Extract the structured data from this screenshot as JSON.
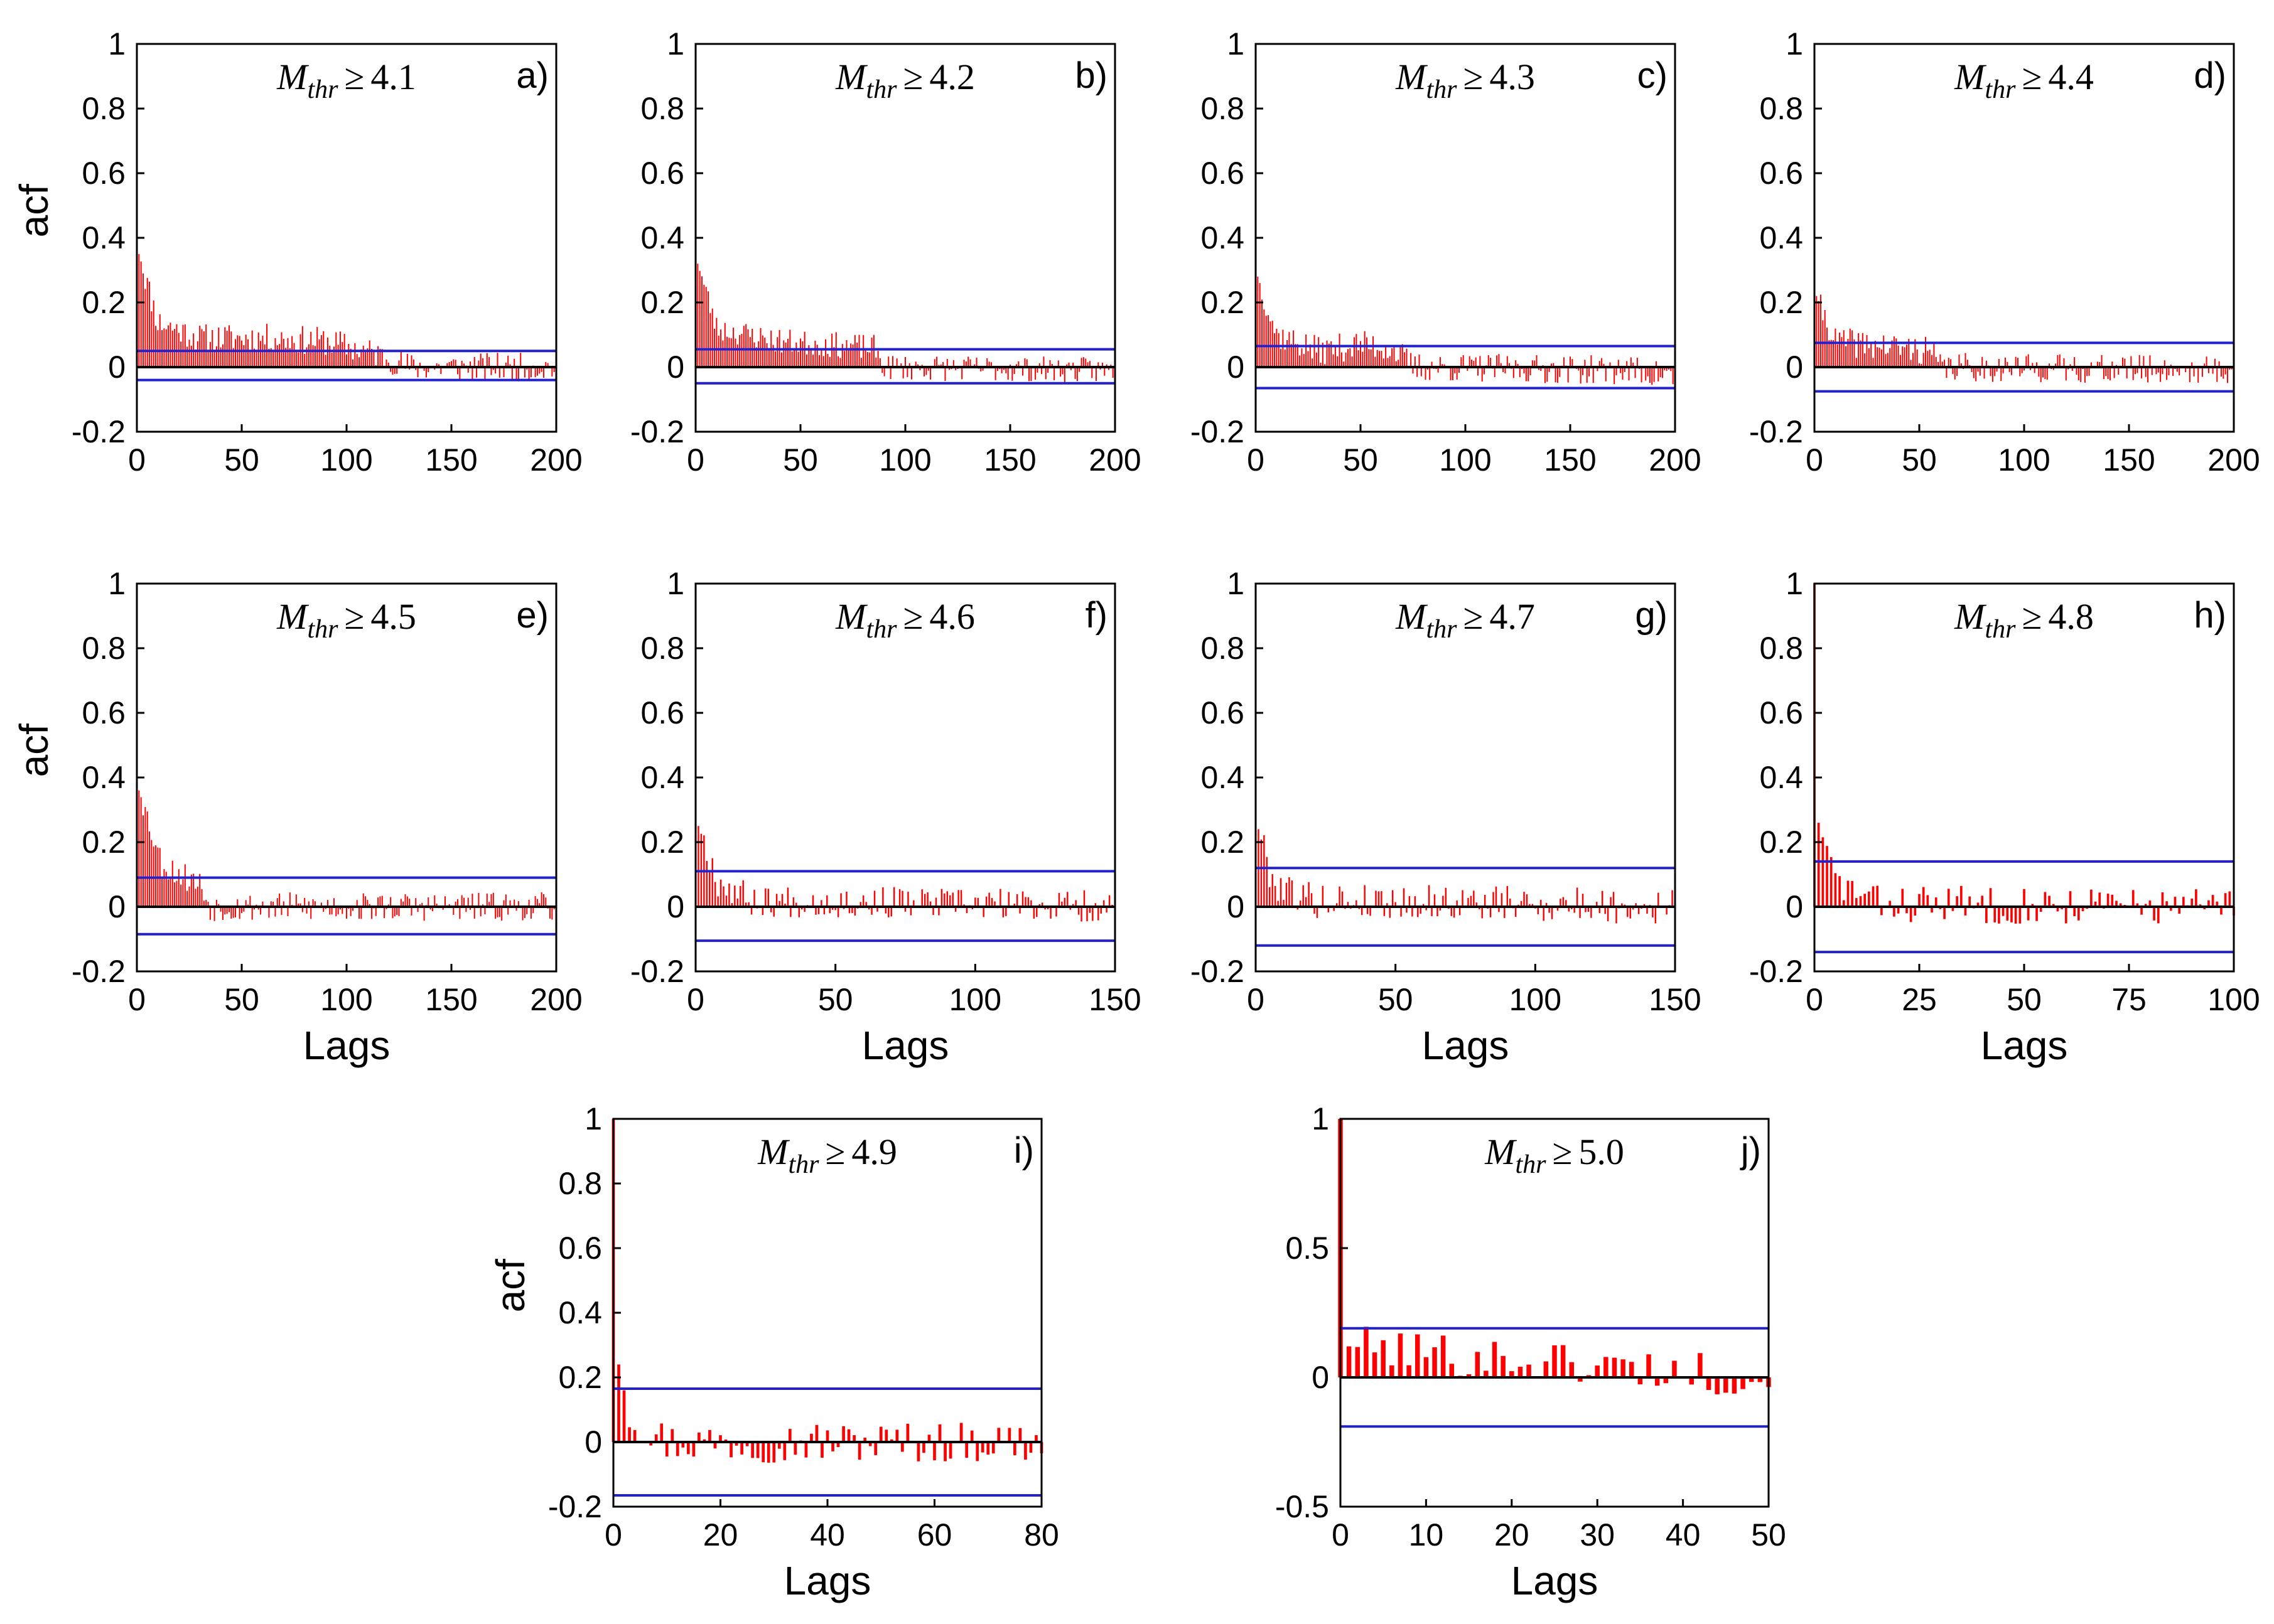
{
  "chart_data": [
    {
      "id": "a",
      "type": "bar",
      "panel_label": "a)",
      "annotation": {
        "symbol": "M",
        "subscript": "thr",
        "relation": "≥",
        "value": "4.1"
      },
      "xlim": [
        0,
        200
      ],
      "ylim": [
        -0.2,
        1
      ],
      "xticks": [
        0,
        50,
        100,
        150,
        200
      ],
      "yticks": [
        1,
        0.8,
        0.6,
        0.4,
        0.2,
        0,
        -0.2
      ],
      "xtick_labels": [
        "0",
        "50",
        "100",
        "150",
        "200"
      ],
      "ytick_labels": [
        "1",
        "0.8",
        "0.6",
        "0.4",
        "0.2",
        "0",
        "-0.2"
      ],
      "ylabel": "acf",
      "xlabel": "",
      "confidence_bound": 0.05,
      "lower_bound": -0.04,
      "seed": 11,
      "acf_profile": [
        [
          0,
          1
        ],
        [
          1,
          0.35
        ],
        [
          10,
          0.14
        ],
        [
          30,
          0.09
        ],
        [
          60,
          0.09
        ],
        [
          90,
          0.08
        ],
        [
          115,
          0.04
        ],
        [
          130,
          0.0
        ],
        [
          200,
          0.0
        ]
      ],
      "noise": 0.045
    },
    {
      "id": "b",
      "type": "bar",
      "panel_label": "b)",
      "annotation": {
        "symbol": "M",
        "subscript": "thr",
        "relation": "≥",
        "value": "4.2"
      },
      "xlim": [
        0,
        200
      ],
      "ylim": [
        -0.2,
        1
      ],
      "xticks": [
        0,
        50,
        100,
        150,
        200
      ],
      "yticks": [
        1,
        0.8,
        0.6,
        0.4,
        0.2,
        0,
        -0.2
      ],
      "xtick_labels": [
        "0",
        "50",
        "100",
        "150",
        "200"
      ],
      "ytick_labels": [
        "1",
        "0.8",
        "0.6",
        "0.4",
        "0.2",
        "0",
        "-0.2"
      ],
      "ylabel": "",
      "xlabel": "",
      "confidence_bound": 0.055,
      "lower_bound": -0.05,
      "seed": 23,
      "acf_profile": [
        [
          0,
          1
        ],
        [
          1,
          0.32
        ],
        [
          10,
          0.12
        ],
        [
          40,
          0.08
        ],
        [
          85,
          0.06
        ],
        [
          90,
          0.0
        ],
        [
          200,
          -0.01
        ]
      ],
      "noise": 0.04
    },
    {
      "id": "c",
      "type": "bar",
      "panel_label": "c)",
      "annotation": {
        "symbol": "M",
        "subscript": "thr",
        "relation": "≥",
        "value": "4.3"
      },
      "xlim": [
        0,
        200
      ],
      "ylim": [
        -0.2,
        1
      ],
      "xticks": [
        0,
        50,
        100,
        150,
        200
      ],
      "yticks": [
        1,
        0.8,
        0.6,
        0.4,
        0.2,
        0,
        -0.2
      ],
      "xtick_labels": [
        "0",
        "50",
        "100",
        "150",
        "200"
      ],
      "ytick_labels": [
        "1",
        "0.8",
        "0.6",
        "0.4",
        "0.2",
        "0",
        "-0.2"
      ],
      "ylabel": "",
      "xlabel": "",
      "confidence_bound": 0.065,
      "lower_bound": -0.065,
      "seed": 37,
      "acf_profile": [
        [
          0,
          1
        ],
        [
          1,
          0.28
        ],
        [
          10,
          0.1
        ],
        [
          30,
          0.05
        ],
        [
          50,
          0.07
        ],
        [
          65,
          0.06
        ],
        [
          75,
          0.0
        ],
        [
          180,
          -0.01
        ],
        [
          200,
          -0.03
        ]
      ],
      "noise": 0.045
    },
    {
      "id": "d",
      "type": "bar",
      "panel_label": "d)",
      "annotation": {
        "symbol": "M",
        "subscript": "thr",
        "relation": "≥",
        "value": "4.4"
      },
      "xlim": [
        0,
        200
      ],
      "ylim": [
        -0.2,
        1
      ],
      "xticks": [
        0,
        50,
        100,
        150,
        200
      ],
      "yticks": [
        1,
        0.8,
        0.6,
        0.4,
        0.2,
        0,
        -0.2
      ],
      "xtick_labels": [
        "0",
        "50",
        "100",
        "150",
        "200"
      ],
      "ytick_labels": [
        "1",
        "0.8",
        "0.6",
        "0.4",
        "0.2",
        "0",
        "-0.2"
      ],
      "ylabel": "",
      "xlabel": "",
      "confidence_bound": 0.075,
      "lower_bound": -0.075,
      "seed": 41,
      "acf_profile": [
        [
          0,
          1
        ],
        [
          1,
          0.22
        ],
        [
          10,
          0.08
        ],
        [
          55,
          0.05
        ],
        [
          60,
          0.0
        ],
        [
          200,
          -0.01
        ]
      ],
      "noise": 0.045
    },
    {
      "id": "e",
      "type": "bar",
      "panel_label": "e)",
      "annotation": {
        "symbol": "M",
        "subscript": "thr",
        "relation": "≥",
        "value": "4.5"
      },
      "xlim": [
        0,
        200
      ],
      "ylim": [
        -0.2,
        1
      ],
      "xticks": [
        0,
        50,
        100,
        150,
        200
      ],
      "yticks": [
        1,
        0.8,
        0.6,
        0.4,
        0.2,
        0,
        -0.2
      ],
      "xtick_labels": [
        "0",
        "50",
        "100",
        "150",
        "200"
      ],
      "ytick_labels": [
        "1",
        "0.8",
        "0.6",
        "0.4",
        "0.2",
        "0",
        "-0.2"
      ],
      "ylabel": "acf",
      "xlabel": "Lags",
      "confidence_bound": 0.09,
      "lower_bound": -0.085,
      "seed": 53,
      "acf_profile": [
        [
          0,
          1
        ],
        [
          1,
          0.36
        ],
        [
          12,
          0.13
        ],
        [
          30,
          0.07
        ],
        [
          35,
          0.0
        ],
        [
          200,
          0.0
        ]
      ],
      "noise": 0.045
    },
    {
      "id": "f",
      "type": "bar",
      "panel_label": "f)",
      "annotation": {
        "symbol": "M",
        "subscript": "thr",
        "relation": "≥",
        "value": "4.6"
      },
      "xlim": [
        0,
        150
      ],
      "ylim": [
        -0.2,
        1
      ],
      "xticks": [
        0,
        50,
        100,
        150
      ],
      "yticks": [
        1,
        0.8,
        0.6,
        0.4,
        0.2,
        0,
        -0.2
      ],
      "xtick_labels": [
        "0",
        "50",
        "100",
        "150"
      ],
      "ytick_labels": [
        "1",
        "0.8",
        "0.6",
        "0.4",
        "0.2",
        "0",
        "-0.2"
      ],
      "ylabel": "",
      "xlabel": "Lags",
      "confidence_bound": 0.11,
      "lower_bound": -0.105,
      "seed": 67,
      "acf_profile": [
        [
          0,
          1
        ],
        [
          1,
          0.25
        ],
        [
          8,
          0.08
        ],
        [
          20,
          0.02
        ],
        [
          150,
          0.0
        ]
      ],
      "noise": 0.05
    },
    {
      "id": "g",
      "type": "bar",
      "panel_label": "g)",
      "annotation": {
        "symbol": "M",
        "subscript": "thr",
        "relation": "≥",
        "value": "4.7"
      },
      "xlim": [
        0,
        150
      ],
      "ylim": [
        -0.2,
        1
      ],
      "xticks": [
        0,
        50,
        100,
        150
      ],
      "yticks": [
        1,
        0.8,
        0.6,
        0.4,
        0.2,
        0,
        -0.2
      ],
      "xtick_labels": [
        "0",
        "50",
        "100",
        "150"
      ],
      "ytick_labels": [
        "1",
        "0.8",
        "0.6",
        "0.4",
        "0.2",
        "0",
        "-0.2"
      ],
      "ylabel": "",
      "xlabel": "Lags",
      "confidence_bound": 0.12,
      "lower_bound": -0.12,
      "seed": 79,
      "acf_profile": [
        [
          0,
          1
        ],
        [
          1,
          0.24
        ],
        [
          6,
          0.08
        ],
        [
          20,
          0.02
        ],
        [
          150,
          0.0
        ]
      ],
      "noise": 0.055
    },
    {
      "id": "h",
      "type": "bar",
      "panel_label": "h)",
      "annotation": {
        "symbol": "M",
        "subscript": "thr",
        "relation": "≥",
        "value": "4.8"
      },
      "xlim": [
        0,
        100
      ],
      "ylim": [
        -0.2,
        1
      ],
      "xticks": [
        0,
        25,
        50,
        75,
        100
      ],
      "yticks": [
        1,
        0.8,
        0.6,
        0.4,
        0.2,
        0,
        -0.2
      ],
      "xtick_labels": [
        "0",
        "25",
        "50",
        "75",
        "100"
      ],
      "ytick_labels": [
        "1",
        "0.8",
        "0.6",
        "0.4",
        "0.2",
        "0",
        "-0.2"
      ],
      "ylabel": "",
      "xlabel": "Lags",
      "confidence_bound": 0.14,
      "lower_bound": -0.14,
      "seed": 83,
      "acf_profile": [
        [
          0,
          1
        ],
        [
          1,
          0.26
        ],
        [
          5,
          0.08
        ],
        [
          15,
          0.01
        ],
        [
          100,
          0.0
        ]
      ],
      "noise": 0.06
    },
    {
      "id": "i",
      "type": "bar",
      "panel_label": "i)",
      "annotation": {
        "symbol": "M",
        "subscript": "thr",
        "relation": "≥",
        "value": "4.9"
      },
      "xlim": [
        0,
        80
      ],
      "ylim": [
        -0.2,
        1
      ],
      "xticks": [
        0,
        20,
        40,
        60,
        80
      ],
      "yticks": [
        1,
        0.8,
        0.6,
        0.4,
        0.2,
        0,
        -0.2
      ],
      "xtick_labels": [
        "0",
        "20",
        "40",
        "60",
        "80"
      ],
      "ytick_labels": [
        "1",
        "0.8",
        "0.6",
        "0.4",
        "0.2",
        "0",
        "-0.2"
      ],
      "ylabel": "acf",
      "xlabel": "Lags",
      "confidence_bound": 0.165,
      "lower_bound": -0.165,
      "seed": 97,
      "acf_profile": [
        [
          0,
          1
        ],
        [
          1,
          0.24
        ],
        [
          3,
          0.08
        ],
        [
          10,
          0.0
        ],
        [
          80,
          0.0
        ]
      ],
      "noise": 0.065
    },
    {
      "id": "j",
      "type": "bar",
      "panel_label": "j)",
      "annotation": {
        "symbol": "M",
        "subscript": "thr",
        "relation": "≥",
        "value": "5.0"
      },
      "xlim": [
        0,
        50
      ],
      "ylim": [
        -0.5,
        1
      ],
      "xticks": [
        0,
        10,
        20,
        30,
        40,
        50
      ],
      "yticks": [
        1,
        0.5,
        0,
        -0.5
      ],
      "xtick_labels": [
        "0",
        "10",
        "20",
        "30",
        "40",
        "50"
      ],
      "ytick_labels": [
        "1",
        "0.5",
        "0",
        "-0.5"
      ],
      "ylabel": "",
      "xlabel": "Lags",
      "confidence_bound": 0.19,
      "lower_bound": -0.19,
      "seed": 101,
      "acf_profile": [
        [
          0,
          1
        ],
        [
          1,
          0.12
        ],
        [
          50,
          0.0
        ]
      ],
      "noise": 0.085
    }
  ],
  "colors": {
    "bars": "#ff0000",
    "confidence": "#2222cc",
    "zero_line": "#000000",
    "axes": "#000000",
    "background": "#ffffff"
  }
}
